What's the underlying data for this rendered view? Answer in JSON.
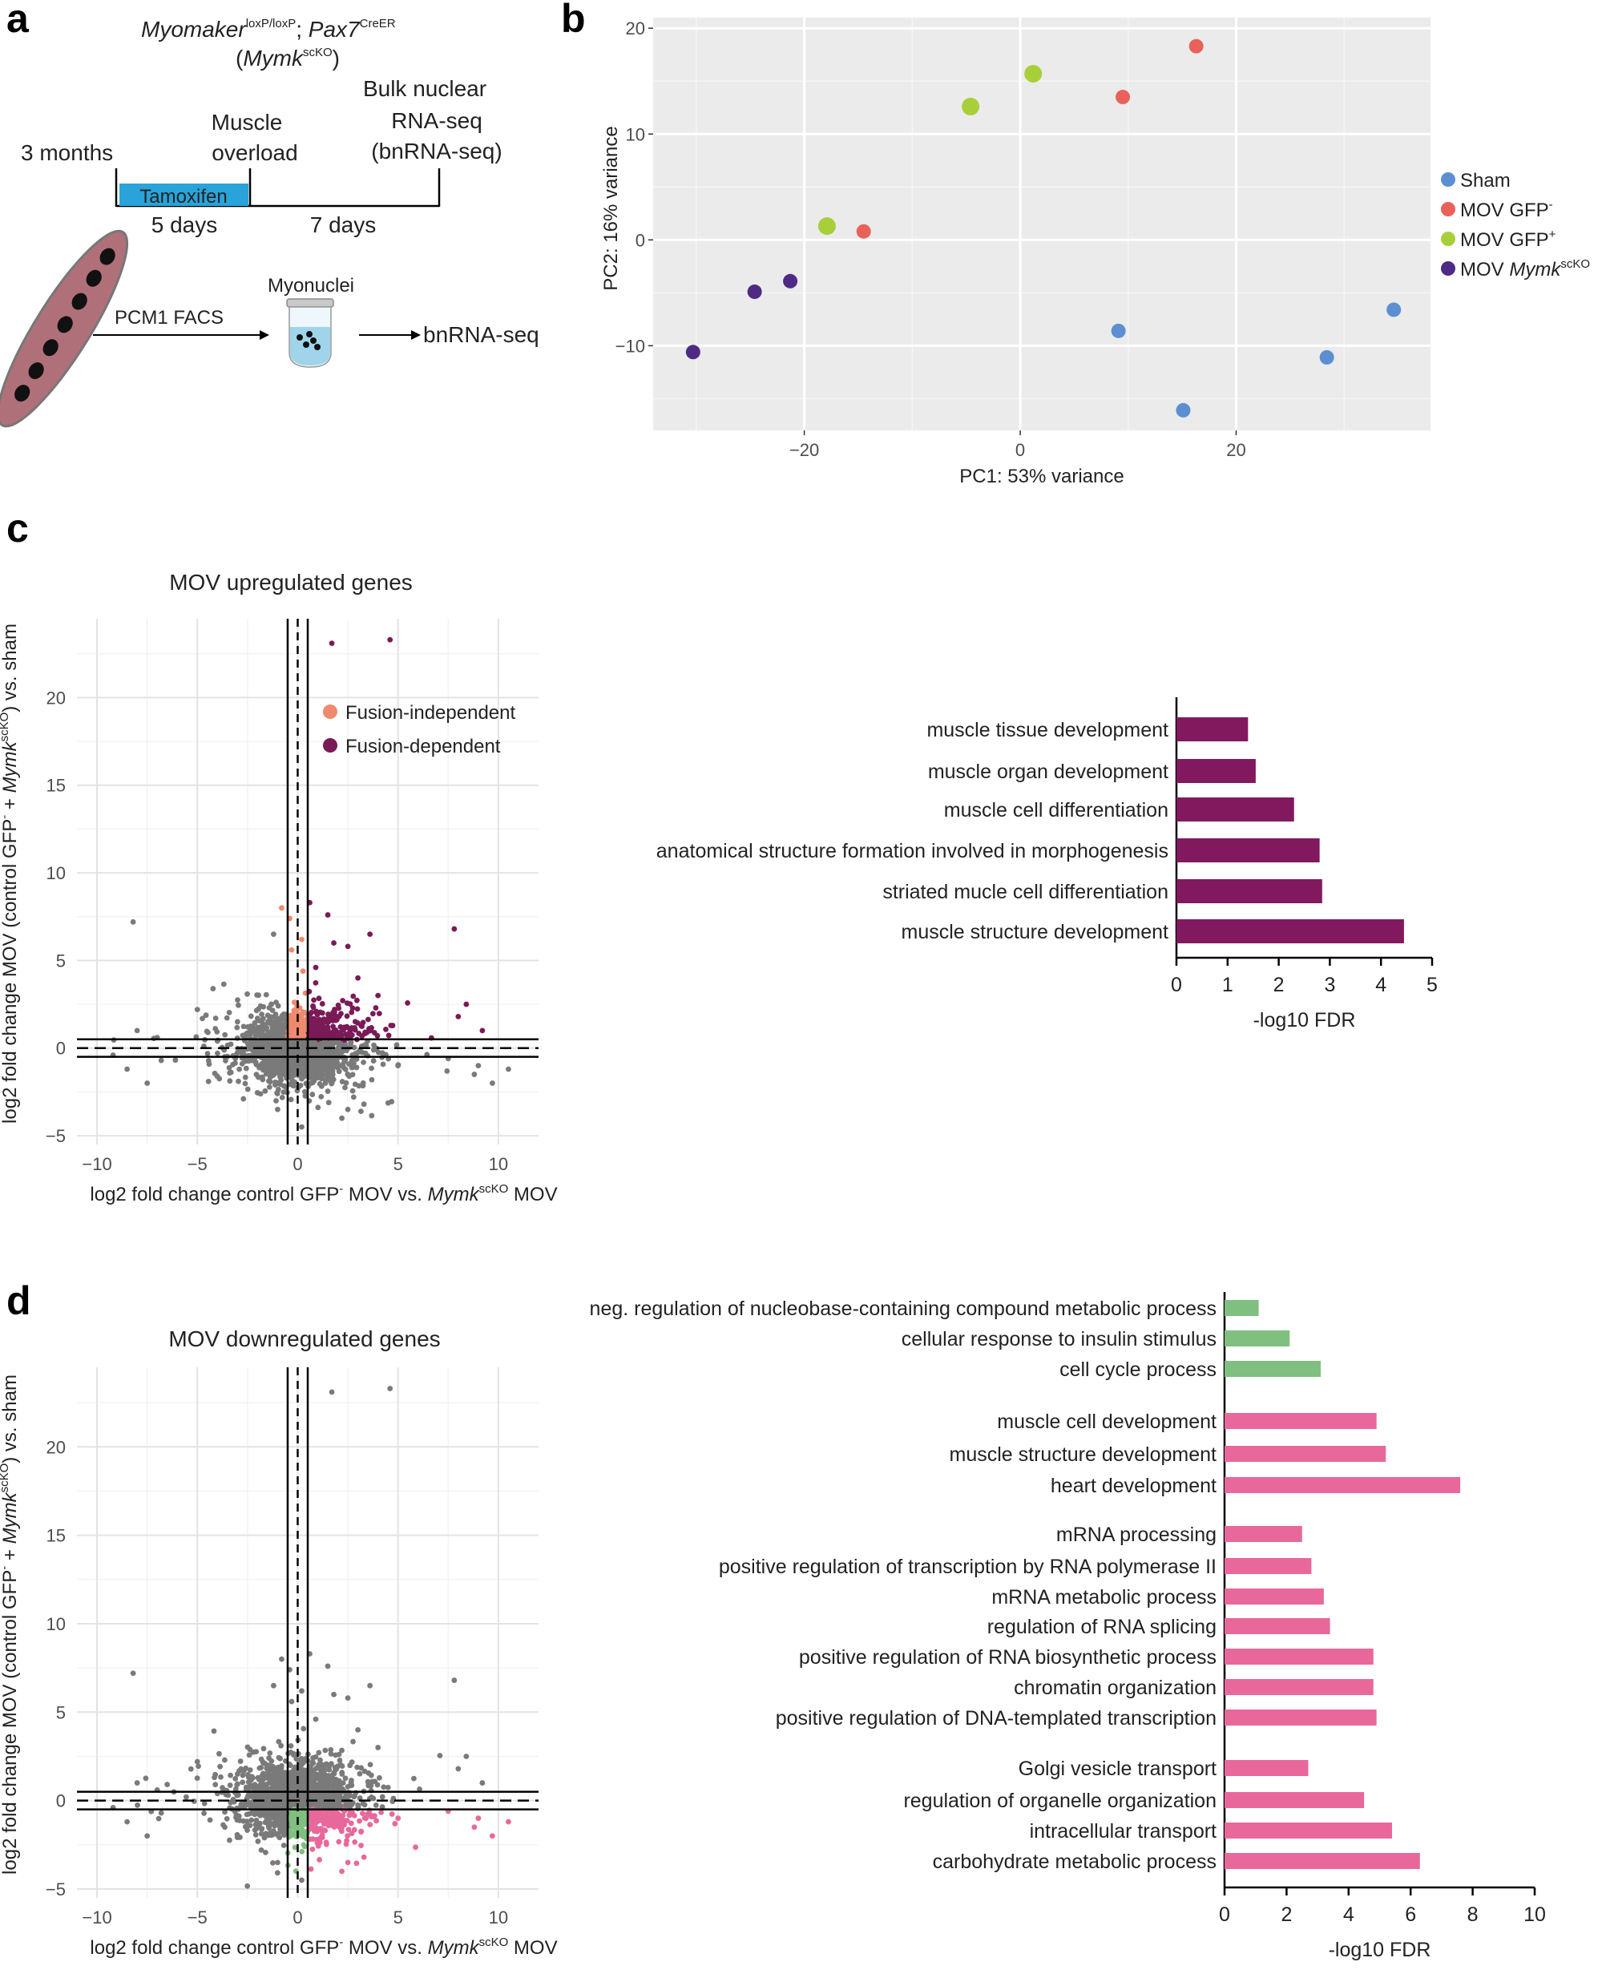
{
  "panels": {
    "a": "a",
    "b": "b",
    "c": "c",
    "d": "d"
  },
  "schematic": {
    "genotype_1": "Myomaker",
    "genotype_1_sup": "loxP/loxP",
    "genotype_sep": "; ",
    "genotype_2": "Pax7",
    "genotype_2_sup": "CreER",
    "abbr_open": "(",
    "abbr": "Mymk",
    "abbr_sup": "scKO",
    "abbr_close": ")",
    "age": "3 months",
    "overload_1": "Muscle",
    "overload_2": "overload",
    "seq_1": "Bulk nuclear",
    "seq_2": "RNA-seq",
    "seq_3": "(bnRNA-seq)",
    "tamoxifen": "Tamoxifen",
    "days_1": "5 days",
    "days_2": "7 days",
    "facs": "PCM1 FACS",
    "myonuclei": "Myonuclei",
    "output": "bnRNA-seq"
  },
  "colors": {
    "sham": "#5b8fd1",
    "mov_gfp_neg": "#e8625a",
    "mov_gfp_pos": "#a8cf3a",
    "mov_ko": "#4e2a84",
    "fusion_independent": "#ef8a6e",
    "fusion_dependent": "#7a1a57",
    "grey_points": "#7a7a7a",
    "bar_purple": "#82195f",
    "bar_green": "#7fbf7f",
    "bar_pink": "#e8689b",
    "tamoxifen": "#29a3d9",
    "fiber": "#b0707a"
  },
  "chart_data": [
    {
      "id": "pca",
      "type": "scatter",
      "xlabel": "PC1: 53% variance",
      "ylabel": "PC2: 16% variance",
      "xlim": [
        -34,
        38
      ],
      "ylim": [
        -18,
        21
      ],
      "xticks": [
        -20,
        0,
        20
      ],
      "yticks": [
        -10,
        0,
        10,
        20
      ],
      "xtick_labels": [
        "−20",
        "0",
        "20"
      ],
      "ytick_labels": [
        "−10",
        "0",
        "10",
        "20"
      ],
      "legend": [
        {
          "key": "sham",
          "label": "Sham",
          "sup": ""
        },
        {
          "key": "mov_gfp_neg",
          "label": "MOV GFP",
          "sup": "-"
        },
        {
          "key": "mov_gfp_pos",
          "label": "MOV GFP",
          "sup": "+"
        },
        {
          "key": "mov_ko",
          "label": "MOV Mymk",
          "sup": "scKO"
        }
      ],
      "points": [
        {
          "x": 16.3,
          "y": 18.3,
          "group": "mov_gfp_neg"
        },
        {
          "x": 9.5,
          "y": 13.5,
          "group": "mov_gfp_neg"
        },
        {
          "x": -14.5,
          "y": 0.8,
          "group": "mov_gfp_neg"
        },
        {
          "x": 1.2,
          "y": 15.7,
          "group": "mov_gfp_pos"
        },
        {
          "x": -4.6,
          "y": 12.6,
          "group": "mov_gfp_pos"
        },
        {
          "x": -17.9,
          "y": 1.3,
          "group": "mov_gfp_pos"
        },
        {
          "x": -21.3,
          "y": -3.9,
          "group": "mov_ko"
        },
        {
          "x": -24.6,
          "y": -4.9,
          "group": "mov_ko"
        },
        {
          "x": -30.3,
          "y": -10.6,
          "group": "mov_ko"
        },
        {
          "x": 9.1,
          "y": -8.6,
          "group": "sham"
        },
        {
          "x": 15.1,
          "y": -16.1,
          "group": "sham"
        },
        {
          "x": 28.4,
          "y": -11.1,
          "group": "sham"
        },
        {
          "x": 34.6,
          "y": -6.6,
          "group": "sham"
        }
      ]
    },
    {
      "id": "scatter_up",
      "type": "scatter",
      "title": "MOV upregulated genes",
      "xlabel": "log2 fold change control GFP",
      "xlabel_sup": "-",
      "xlabel_mid": " MOV vs. ",
      "xlabel_gene": "Mymk",
      "xlabel_gene_sup": "scKO",
      "xlabel_end": " MOV",
      "ylabel": "log2 fold change MOV (control GFP",
      "ylabel_sup": "-",
      "ylabel_mid": " + ",
      "ylabel_gene": "Mymk",
      "ylabel_gene_sup": "scKO",
      "ylabel_end": ")  vs. sham",
      "xlim": [
        -11,
        12
      ],
      "ylim": [
        -5.5,
        24.5
      ],
      "xticks": [
        -10,
        -5,
        0,
        5,
        10
      ],
      "yticks": [
        -5,
        0,
        5,
        10,
        15,
        20
      ],
      "xtick_labels": [
        "−10",
        "−5",
        "0",
        "5",
        "10"
      ],
      "ytick_labels": [
        "−5",
        "0",
        "5",
        "10",
        "15",
        "20"
      ],
      "legend": [
        {
          "key": "fusion_independent",
          "label": "Fusion-independent"
        },
        {
          "key": "fusion_dependent",
          "label": "Fusion-dependent"
        }
      ],
      "highlight": "up"
    },
    {
      "id": "bars_up",
      "type": "bar",
      "orientation": "horizontal",
      "xlabel": "-log10 FDR",
      "xlim": [
        0,
        5
      ],
      "xticks": [
        0,
        1,
        2,
        3,
        4,
        5
      ],
      "xtick_labels": [
        "0",
        "1",
        "2",
        "3",
        "4",
        "5"
      ],
      "categories": [
        "muscle tissue development",
        "muscle organ development",
        "muscle cell differentiation",
        "anatomical structure formation involved in morphogenesis",
        "striated mucle cell differentiation",
        "muscle structure development"
      ],
      "values": [
        1.4,
        1.55,
        2.3,
        2.8,
        2.85,
        4.45
      ]
    },
    {
      "id": "scatter_down",
      "type": "scatter",
      "title": "MOV downregulated genes",
      "xlabel": "log2 fold change control GFP",
      "xlabel_sup": "-",
      "xlabel_mid": " MOV vs. ",
      "xlabel_gene": "Mymk",
      "xlabel_gene_sup": "scKO",
      "xlabel_end": " MOV",
      "ylabel": "log2 fold change MOV (control GFP",
      "ylabel_sup": "-",
      "ylabel_mid": " + ",
      "ylabel_gene": "Mymk",
      "ylabel_gene_sup": "scKO",
      "ylabel_end": ")  vs. sham",
      "xlim": [
        -11,
        12
      ],
      "ylim": [
        -5.5,
        24.5
      ],
      "xticks": [
        -10,
        -5,
        0,
        5,
        10
      ],
      "yticks": [
        -5,
        0,
        5,
        10,
        15,
        20
      ],
      "xtick_labels": [
        "−10",
        "−5",
        "0",
        "5",
        "10"
      ],
      "ytick_labels": [
        "−5",
        "0",
        "5",
        "10",
        "15",
        "20"
      ],
      "highlight": "down"
    },
    {
      "id": "bars_down",
      "type": "bar",
      "orientation": "horizontal",
      "xlabel": "-log10 FDR",
      "xlim": [
        0,
        10
      ],
      "xticks": [
        0,
        2,
        4,
        6,
        8,
        10
      ],
      "xtick_labels": [
        "0",
        "2",
        "4",
        "6",
        "8",
        "10"
      ],
      "groups": [
        {
          "color": "bar_green",
          "categories": [
            "neg. regulation of nucleobase-containing compound metabolic process",
            "cellular response to insulin stimulus",
            "cell cycle process"
          ],
          "values": [
            1.1,
            2.1,
            3.1
          ]
        },
        {
          "color": "bar_pink",
          "categories": [
            "muscle cell development",
            "muscle structure development",
            "heart development"
          ],
          "values": [
            4.9,
            5.2,
            7.6
          ]
        },
        {
          "color": "bar_pink",
          "categories": [
            "mRNA processing",
            "positive regulation of transcription by RNA polymerase II",
            "mRNA metabolic process",
            "regulation of RNA splicing",
            "positive regulation of RNA biosynthetic process",
            "chromatin organization",
            "positive regulation of DNA-templated transcription"
          ],
          "values": [
            2.5,
            2.8,
            3.2,
            3.4,
            4.8,
            4.8,
            4.9
          ]
        },
        {
          "color": "bar_pink",
          "categories": [
            "Golgi vesicle transport",
            "regulation of organelle organization",
            "intracellular transport",
            "carbohydrate metabolic process"
          ],
          "values": [
            2.7,
            4.5,
            5.4,
            6.3
          ]
        }
      ]
    }
  ]
}
